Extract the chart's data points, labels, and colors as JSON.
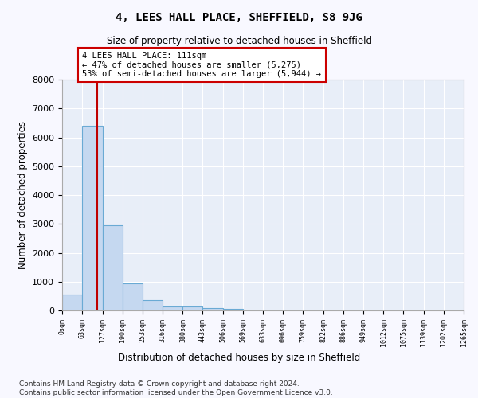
{
  "title": "4, LEES HALL PLACE, SHEFFIELD, S8 9JG",
  "subtitle": "Size of property relative to detached houses in Sheffield",
  "xlabel": "Distribution of detached houses by size in Sheffield",
  "ylabel": "Number of detached properties",
  "bin_edges": [
    0,
    63,
    127,
    190,
    253,
    316,
    380,
    443,
    506,
    569,
    633,
    696,
    759,
    822,
    886,
    949,
    1012,
    1075,
    1139,
    1202,
    1265
  ],
  "bin_counts": [
    550,
    6400,
    2950,
    950,
    370,
    130,
    130,
    75,
    60,
    0,
    0,
    0,
    0,
    0,
    0,
    0,
    0,
    0,
    0,
    0
  ],
  "bar_color": "#c5d8f0",
  "bar_edgecolor": "#6aaad4",
  "vline_x": 111,
  "vline_color": "#c00000",
  "annotation_text": "4 LEES HALL PLACE: 111sqm\n← 47% of detached houses are smaller (5,275)\n53% of semi-detached houses are larger (5,944) →",
  "ylim": [
    0,
    8000
  ],
  "yticks": [
    0,
    1000,
    2000,
    3000,
    4000,
    5000,
    6000,
    7000,
    8000
  ],
  "tick_labels": [
    "0sqm",
    "63sqm",
    "127sqm",
    "190sqm",
    "253sqm",
    "316sqm",
    "380sqm",
    "443sqm",
    "506sqm",
    "569sqm",
    "633sqm",
    "696sqm",
    "759sqm",
    "822sqm",
    "886sqm",
    "949sqm",
    "1012sqm",
    "1075sqm",
    "1139sqm",
    "1202sqm",
    "1265sqm"
  ],
  "footer_line1": "Contains HM Land Registry data © Crown copyright and database right 2024.",
  "footer_line2": "Contains public sector information licensed under the Open Government Licence v3.0.",
  "background_color": "#f8f8ff",
  "plot_bg_color": "#e8eef8"
}
